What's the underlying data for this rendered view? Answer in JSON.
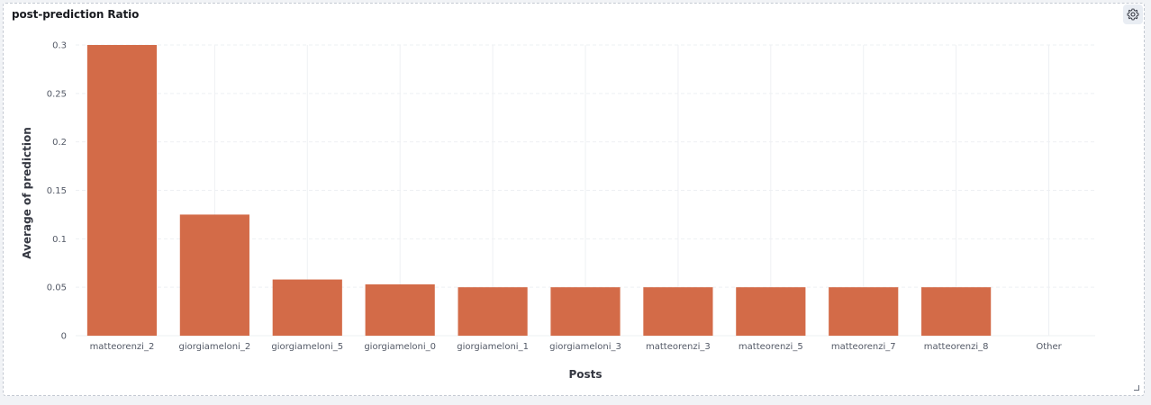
{
  "panel": {
    "title": "post-prediction Ratio",
    "settings_icon": "gear-icon",
    "resize_icon": "resize-corner-icon"
  },
  "colors": {
    "bar": "#d36b48",
    "grid": "#eef0f3",
    "axis_text": "#535966"
  },
  "chart_data": {
    "type": "bar",
    "title": "",
    "xlabel": "Posts",
    "ylabel": "Average of prediction",
    "categories": [
      "matteorenzi_2",
      "giorgiameloni_2",
      "giorgiameloni_5",
      "giorgiameloni_0",
      "giorgiameloni_1",
      "giorgiameloni_3",
      "matteorenzi_3",
      "matteorenzi_5",
      "matteorenzi_7",
      "matteorenzi_8",
      "Other"
    ],
    "values": [
      0.3,
      0.125,
      0.058,
      0.053,
      0.05,
      0.05,
      0.05,
      0.05,
      0.05,
      0.05,
      null
    ],
    "ylim": [
      0,
      0.3
    ],
    "yticks": [
      0,
      0.05,
      0.1,
      0.15,
      0.2,
      0.25,
      0.3
    ],
    "ytick_labels": [
      "0",
      "0.05",
      "0.1",
      "0.15",
      "0.2",
      "0.25",
      "0.3"
    ],
    "grid": true,
    "legend": "none"
  }
}
